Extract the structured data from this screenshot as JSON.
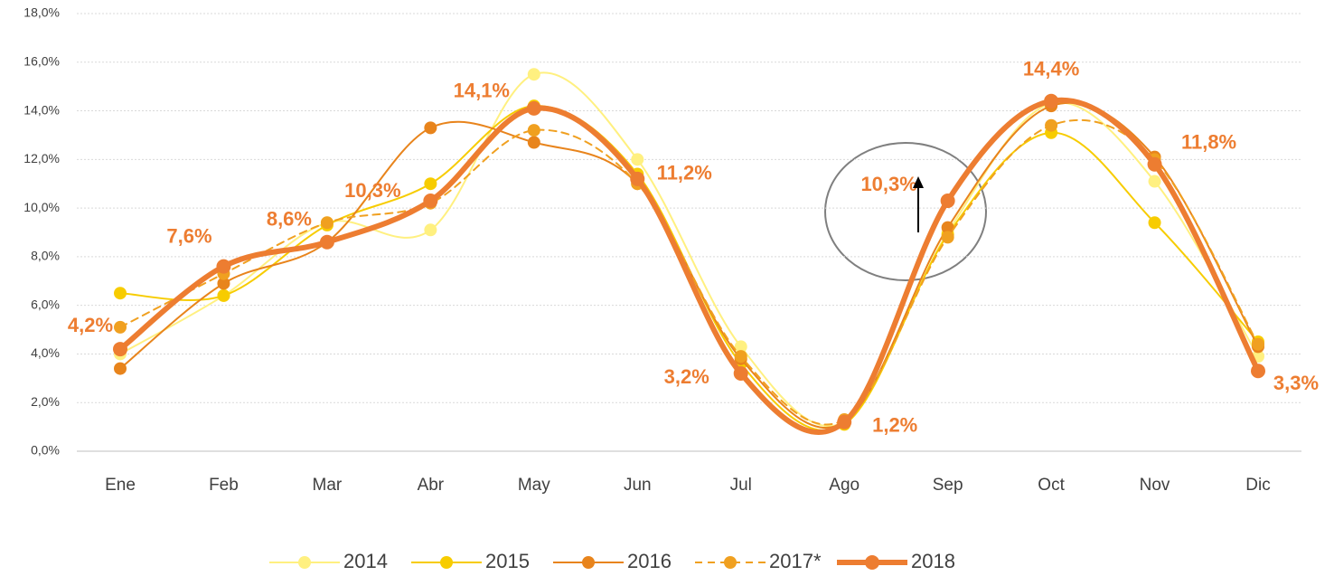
{
  "chart_data": {
    "type": "line",
    "categories": [
      "Ene",
      "Feb",
      "Mar",
      "Abr",
      "May",
      "Jun",
      "Jul",
      "Ago",
      "Sep",
      "Oct",
      "Nov",
      "Dic"
    ],
    "series": [
      {
        "name": "2014",
        "color": "#FFF080",
        "line_width": 2,
        "dashed": false,
        "values": [
          4.0,
          6.4,
          9.4,
          9.1,
          15.5,
          12.0,
          4.3,
          1.2,
          9.0,
          14.3,
          11.1,
          3.9
        ]
      },
      {
        "name": "2015",
        "color": "#F7CC00",
        "line_width": 2,
        "dashed": false,
        "values": [
          6.5,
          6.4,
          9.3,
          11.0,
          14.2,
          11.4,
          3.6,
          1.1,
          8.9,
          13.1,
          9.4,
          4.5
        ]
      },
      {
        "name": "2016",
        "color": "#E8841C",
        "line_width": 2,
        "dashed": false,
        "values": [
          3.4,
          6.9,
          8.6,
          13.3,
          12.7,
          11.0,
          3.8,
          1.2,
          9.2,
          14.2,
          12.1,
          4.3
        ]
      },
      {
        "name": "2017*",
        "color": "#F0A020",
        "line_width": 2,
        "dashed": true,
        "values": [
          5.1,
          7.3,
          9.4,
          10.2,
          13.2,
          11.0,
          3.9,
          1.3,
          8.8,
          13.4,
          12.0,
          4.4
        ]
      },
      {
        "name": "2018",
        "color": "#ED7D31",
        "line_width": 6,
        "dashed": false,
        "values": [
          4.2,
          7.6,
          8.6,
          10.3,
          14.1,
          11.2,
          3.2,
          1.2,
          10.3,
          14.4,
          11.8,
          3.3
        ],
        "value_labels": [
          "4,2%",
          "7,6%",
          "8,6%",
          "10,3%",
          "14,1%",
          "11,2%",
          "3,2%",
          "1,2%",
          "10,3%",
          "14,4%",
          "11,8%",
          "3,3%"
        ]
      }
    ],
    "ylim": [
      0,
      18
    ],
    "yticks": [
      {
        "value": 0,
        "label": "0,0%"
      },
      {
        "value": 2,
        "label": "2,0%"
      },
      {
        "value": 4,
        "label": "4,0%"
      },
      {
        "value": 6,
        "label": "6,0%"
      },
      {
        "value": 8,
        "label": "8,0%"
      },
      {
        "value": 10,
        "label": "10,0%"
      },
      {
        "value": 12,
        "label": "12,0%"
      },
      {
        "value": 14,
        "label": "14,0%"
      },
      {
        "value": 16,
        "label": "16,0%"
      },
      {
        "value": 18,
        "label": "18,0%"
      }
    ],
    "grid": true,
    "smooth": true,
    "legend": "bottom"
  }
}
